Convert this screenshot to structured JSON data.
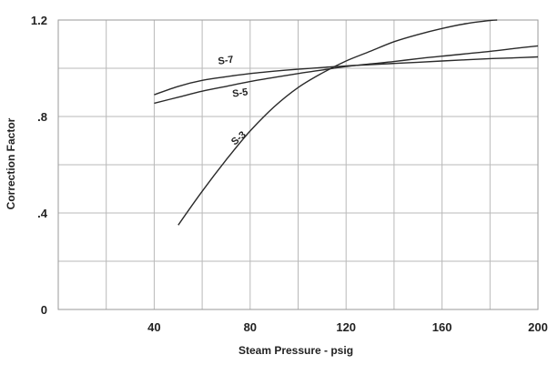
{
  "chart_data": {
    "type": "line",
    "xlabel": "Steam Pressure - psig",
    "ylabel": "Correction Factor",
    "xlim": [
      0,
      200
    ],
    "ylim": [
      0,
      1.2
    ],
    "grid": true,
    "x_ticks": [
      40,
      80,
      120,
      160,
      200
    ],
    "x_tick_labels": [
      "40",
      "80",
      "120",
      "160",
      "200"
    ],
    "y_ticks": [
      0,
      0.4,
      0.8,
      1.2
    ],
    "y_tick_labels": [
      "0",
      ".4",
      ".8",
      "1.2"
    ],
    "series": [
      {
        "name": "S-7",
        "x": [
          40,
          50,
          60,
          70,
          80,
          90,
          100,
          110,
          120,
          130,
          140,
          150,
          160,
          170,
          180,
          190,
          200
        ],
        "y": [
          0.89,
          0.925,
          0.95,
          0.965,
          0.978,
          0.988,
          0.996,
          1.003,
          1.01,
          1.015,
          1.02,
          1.025,
          1.03,
          1.035,
          1.04,
          1.043,
          1.047
        ]
      },
      {
        "name": "S-5",
        "x": [
          40,
          50,
          60,
          70,
          80,
          90,
          100,
          110,
          120,
          130,
          140,
          150,
          160,
          170,
          180,
          190,
          200
        ],
        "y": [
          0.855,
          0.88,
          0.905,
          0.925,
          0.945,
          0.962,
          0.978,
          0.993,
          1.007,
          1.018,
          1.028,
          1.04,
          1.05,
          1.06,
          1.07,
          1.082,
          1.093
        ]
      },
      {
        "name": "S-3",
        "x": [
          50,
          60,
          70,
          80,
          90,
          100,
          110,
          120,
          130,
          140,
          150,
          160,
          170,
          180,
          183
        ],
        "y": [
          0.35,
          0.49,
          0.62,
          0.74,
          0.84,
          0.92,
          0.98,
          1.03,
          1.07,
          1.11,
          1.14,
          1.165,
          1.185,
          1.198,
          1.2
        ]
      }
    ],
    "series_label_positions": [
      {
        "name": "S-7",
        "x": 70,
        "y": 1.02,
        "angle": -8
      },
      {
        "name": "S-5",
        "x": 76,
        "y": 0.885,
        "angle": -8
      },
      {
        "name": "S-3",
        "x": 76,
        "y": 0.7,
        "angle": -40
      }
    ]
  }
}
